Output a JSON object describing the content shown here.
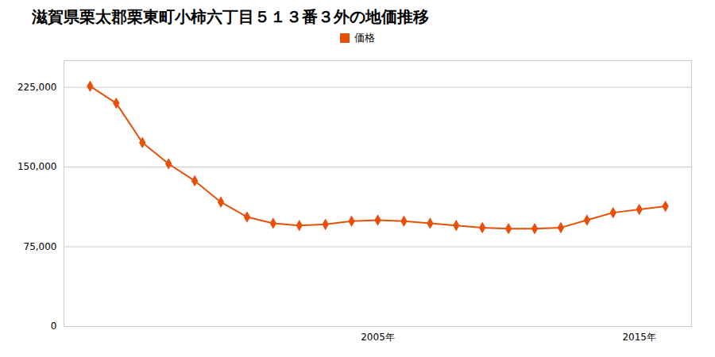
{
  "chart_data": {
    "type": "line",
    "title": "滋賀県栗太郡栗東町小柿六丁目５１３番３外の地価推移",
    "x": [
      1994,
      1995,
      1996,
      1997,
      1998,
      1999,
      2000,
      2001,
      2002,
      2003,
      2004,
      2005,
      2006,
      2007,
      2008,
      2009,
      2010,
      2011,
      2012,
      2013,
      2014,
      2015,
      2016
    ],
    "series": [
      {
        "name": "価格",
        "color": "#e8500a",
        "marker": "diamond",
        "line_style": "solid",
        "values": [
          226000,
          210000,
          173000,
          153000,
          137000,
          117000,
          103000,
          97000,
          95000,
          96000,
          99000,
          100000,
          99000,
          97000,
          95000,
          93000,
          92000,
          92000,
          93000,
          100000,
          107000,
          110000,
          113000
        ]
      }
    ],
    "xlim": [
      1993,
      2017
    ],
    "xticks": [
      {
        "value": 2005,
        "label": "2005年"
      },
      {
        "value": 2015,
        "label": "2015年"
      }
    ],
    "ylim": [
      0,
      250000
    ],
    "yticks": [
      0,
      {
        "value": 75000,
        "label": "75,000"
      },
      {
        "value": 150000,
        "label": "150,000"
      },
      {
        "value": 225000,
        "label": "225,000"
      }
    ],
    "grid": "y",
    "legend": "top"
  }
}
